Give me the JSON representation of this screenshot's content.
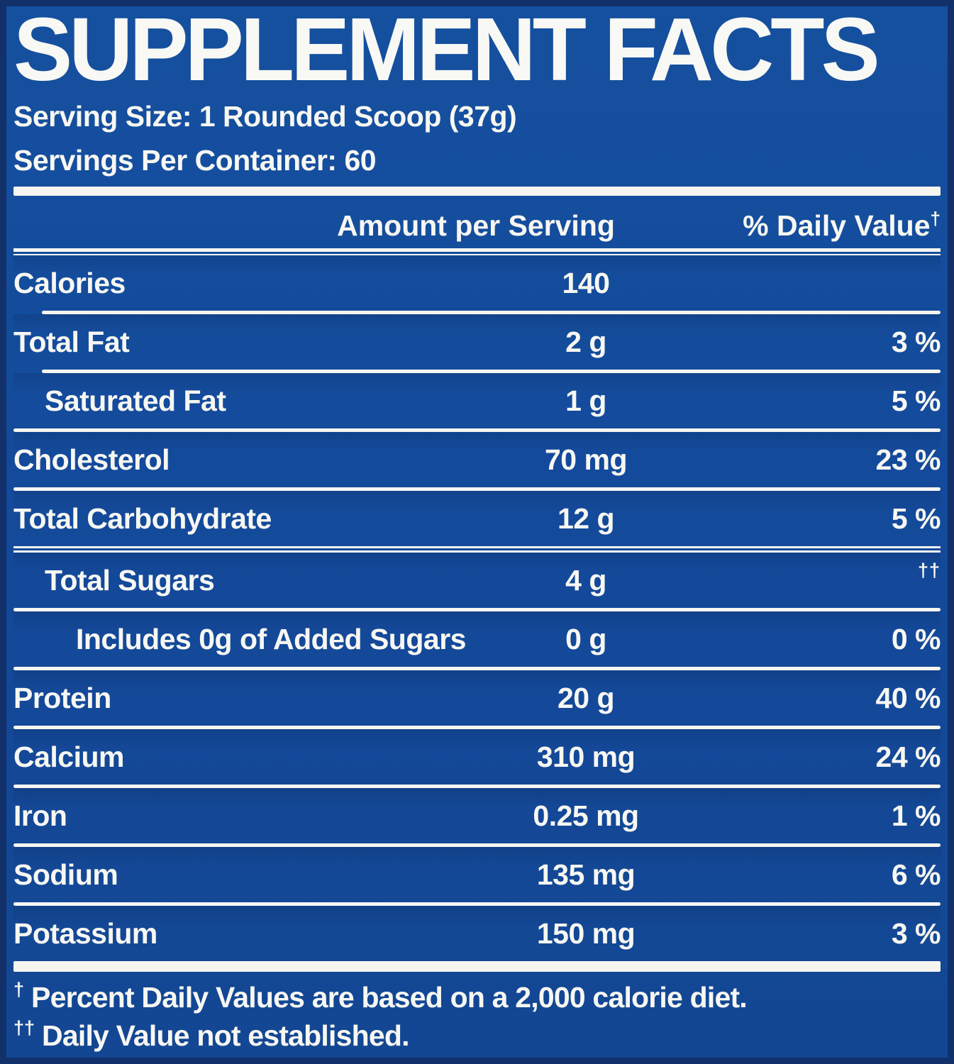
{
  "label": {
    "title": "SUPPLEMENT FACTS",
    "serving_size": "Serving Size: 1 Rounded Scoop (37g)",
    "servings_per_container": "Servings Per Container: 60",
    "columns": {
      "amount": "Amount per Serving",
      "daily_value": "% Daily Value",
      "daily_value_sup": "†"
    },
    "rows": [
      {
        "name": "Calories",
        "amount": "140",
        "dv": "",
        "indent": 0
      },
      {
        "name": "Total Fat",
        "amount": "2 g",
        "dv": "3 %",
        "indent": 0
      },
      {
        "name": "Saturated Fat",
        "amount": "1 g",
        "dv": "5 %",
        "indent": 1
      },
      {
        "name": "Cholesterol",
        "amount": "70 mg",
        "dv": "23 %",
        "indent": 0
      },
      {
        "name": "Total Carbohydrate",
        "amount": "12 g",
        "dv": "5 %",
        "indent": 0
      },
      {
        "name": "Total Sugars",
        "amount": "4 g",
        "dv": "††",
        "indent": 1
      },
      {
        "name": "Includes 0g of Added Sugars",
        "amount": "0 g",
        "dv": "0 %",
        "indent": 2
      },
      {
        "name": "Protein",
        "amount": "20 g",
        "dv": "40 %",
        "indent": 0
      },
      {
        "name": "Calcium",
        "amount": "310 mg",
        "dv": "24 %",
        "indent": 0
      },
      {
        "name": "Iron",
        "amount": "0.25 mg",
        "dv": "1 %",
        "indent": 0
      },
      {
        "name": "Sodium",
        "amount": "135 mg",
        "dv": "6 %",
        "indent": 0
      },
      {
        "name": "Potassium",
        "amount": "150 mg",
        "dv": "3 %",
        "indent": 0
      }
    ],
    "footnotes": [
      {
        "symbol": "†",
        "text": "Percent Daily Values are based on a 2,000 calorie diet."
      },
      {
        "symbol": "††",
        "text": "Daily Value not established."
      }
    ]
  },
  "colors": {
    "background": "#14499a",
    "border": "#12306a",
    "text": "#f7f7f2",
    "line": "#f6f6f1"
  }
}
